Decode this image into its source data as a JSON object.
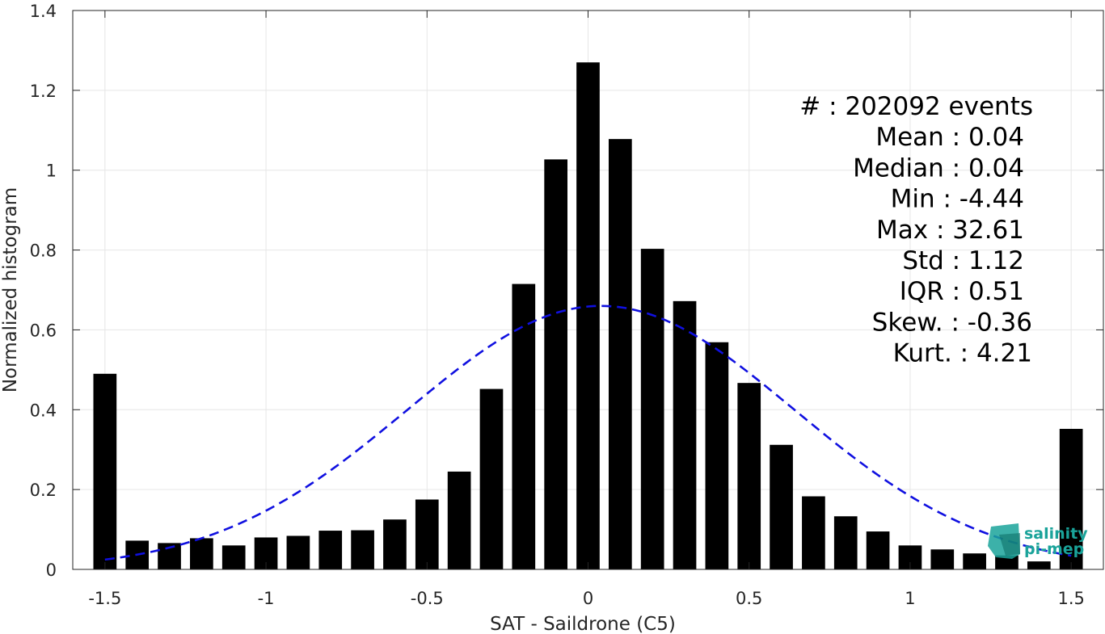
{
  "chart_data": {
    "type": "bar",
    "xlabel": "SAT - Saildrone (C5)",
    "ylabel": "Normalized histogram",
    "xlim": [
      -1.6,
      1.6
    ],
    "ylim": [
      0,
      1.4
    ],
    "xticks": [
      -1.5,
      -1,
      -0.5,
      0,
      0.5,
      1,
      1.5
    ],
    "xtick_labels": [
      "-1.5",
      "-1",
      "-0.5",
      "0",
      "0.5",
      "1",
      "1.5"
    ],
    "yticks": [
      0,
      0.2,
      0.4,
      0.6,
      0.8,
      1,
      1.2,
      1.4
    ],
    "ytick_labels": [
      "0",
      "0.2",
      "0.4",
      "0.6",
      "0.8",
      "1",
      "1.2",
      "1.4"
    ],
    "grid": true,
    "bar_color": "#000000",
    "bins": [
      {
        "x": -1.5,
        "y": 0.49
      },
      {
        "x": -1.4,
        "y": 0.072
      },
      {
        "x": -1.3,
        "y": 0.066
      },
      {
        "x": -1.2,
        "y": 0.078
      },
      {
        "x": -1.1,
        "y": 0.06
      },
      {
        "x": -1.0,
        "y": 0.08
      },
      {
        "x": -0.9,
        "y": 0.084
      },
      {
        "x": -0.8,
        "y": 0.097
      },
      {
        "x": -0.7,
        "y": 0.098
      },
      {
        "x": -0.6,
        "y": 0.125
      },
      {
        "x": -0.5,
        "y": 0.175
      },
      {
        "x": -0.4,
        "y": 0.245
      },
      {
        "x": -0.3,
        "y": 0.452
      },
      {
        "x": -0.2,
        "y": 0.715
      },
      {
        "x": -0.1,
        "y": 1.027
      },
      {
        "x": 0.0,
        "y": 1.27
      },
      {
        "x": 0.1,
        "y": 1.078
      },
      {
        "x": 0.2,
        "y": 0.803
      },
      {
        "x": 0.3,
        "y": 0.672
      },
      {
        "x": 0.4,
        "y": 0.569
      },
      {
        "x": 0.5,
        "y": 0.467
      },
      {
        "x": 0.6,
        "y": 0.312
      },
      {
        "x": 0.7,
        "y": 0.183
      },
      {
        "x": 0.8,
        "y": 0.133
      },
      {
        "x": 0.9,
        "y": 0.095
      },
      {
        "x": 1.0,
        "y": 0.06
      },
      {
        "x": 1.1,
        "y": 0.05
      },
      {
        "x": 1.2,
        "y": 0.04
      },
      {
        "x": 1.3,
        "y": 0.035
      },
      {
        "x": 1.4,
        "y": 0.02
      },
      {
        "x": 1.5,
        "y": 0.352
      }
    ],
    "fit_curve": {
      "style": "dashed",
      "color": "#1010e0",
      "mean": 0.04,
      "std": 0.6,
      "peak": 0.66,
      "x_range": [
        -1.5,
        1.5
      ]
    },
    "stats": [
      "#  : 202092 events",
      "Mean : 0.04",
      "Median : 0.04",
      "Min : -4.44",
      "Max : 32.61",
      "Std : 1.12",
      "IQR : 0.51",
      "Skew. : -0.36",
      "Kurt. : 4.21"
    ]
  },
  "logo": {
    "line1": "salinity",
    "line2": "pi-mep",
    "color": "#1aa39a"
  }
}
